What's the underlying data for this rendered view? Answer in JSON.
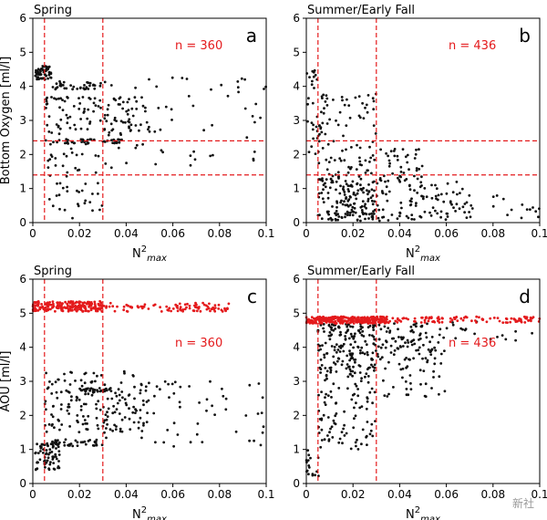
{
  "colors": {
    "black_points": "#111111",
    "red": "#e41a1c",
    "axis": "#000000",
    "watermark": "#9a9a9a"
  },
  "watermark_text": "新社",
  "chart_data": [
    {
      "type": "scatter",
      "panel_letter": "a",
      "title": "Spring",
      "xlabel": "N²max",
      "ylabel": "Bottom Oxygen [ml/l]",
      "xlim": [
        0,
        0.1
      ],
      "ylim": [
        0,
        6
      ],
      "xticks": [
        0,
        0.02,
        0.04,
        0.06,
        0.08,
        0.1
      ],
      "xtick_labels": [
        "0",
        "0.02",
        "0.04",
        "0.06",
        "0.08",
        "0.1"
      ],
      "yticks": [
        0,
        1,
        2,
        3,
        4,
        5,
        6
      ],
      "ytick_labels": [
        "0",
        "1",
        "2",
        "3",
        "4",
        "5",
        "6"
      ],
      "n_text": "n = 360",
      "vlines": [
        0.005,
        0.03
      ],
      "hlines": [
        1.4,
        2.4
      ],
      "series": [
        {
          "color": "black",
          "n": 360,
          "x_dist": [
            0.0,
            0.1
          ],
          "y_dist": [
            0.1,
            5.2
          ],
          "clusters": [
            {
              "x": [
                0.001,
                0.008
              ],
              "y": [
                4.2,
                4.6
              ],
              "w": 0.16
            },
            {
              "x": [
                0.008,
                0.03
              ],
              "y": [
                3.9,
                4.15
              ],
              "w": 0.1
            },
            {
              "x": [
                0.005,
                0.04
              ],
              "y": [
                2.3,
                2.45
              ],
              "w": 0.12
            },
            {
              "x": [
                0.005,
                0.05
              ],
              "y": [
                2.6,
                3.7
              ],
              "w": 0.3
            },
            {
              "x": [
                0.005,
                0.03
              ],
              "y": [
                0.1,
                2.2
              ],
              "w": 0.14
            },
            {
              "x": [
                0.03,
                0.1
              ],
              "y": [
                1.6,
                4.3
              ],
              "w": 0.18
            }
          ]
        }
      ]
    },
    {
      "type": "scatter",
      "panel_letter": "b",
      "title": "Summer/Early Fall",
      "xlabel": "N²max",
      "ylabel": "",
      "xlim": [
        0,
        0.1
      ],
      "ylim": [
        0,
        6
      ],
      "xticks": [
        0,
        0.02,
        0.04,
        0.06,
        0.08,
        0.1
      ],
      "xtick_labels": [
        "0",
        "0.02",
        "0.04",
        "0.06",
        "0.08",
        "0.1"
      ],
      "yticks": [
        0,
        1,
        2,
        3,
        4,
        5,
        6
      ],
      "ytick_labels": [
        "0",
        "1",
        "2",
        "3",
        "4",
        "5",
        "6"
      ],
      "n_text": "n = 436",
      "vlines": [
        0.005,
        0.03
      ],
      "hlines": [
        1.4,
        2.4
      ],
      "series": [
        {
          "color": "black",
          "n": 436,
          "x_dist": [
            0.0,
            0.1
          ],
          "y_dist": [
            0.0,
            4.5
          ],
          "clusters": [
            {
              "x": [
                0.0,
                0.005
              ],
              "y": [
                2.0,
                4.5
              ],
              "w": 0.06
            },
            {
              "x": [
                0.005,
                0.03
              ],
              "y": [
                0.05,
                1.3
              ],
              "w": 0.36
            },
            {
              "x": [
                0.005,
                0.03
              ],
              "y": [
                1.3,
                3.8
              ],
              "w": 0.22
            },
            {
              "x": [
                0.03,
                0.07
              ],
              "y": [
                0.05,
                1.2
              ],
              "w": 0.22
            },
            {
              "x": [
                0.07,
                0.1
              ],
              "y": [
                0.05,
                0.8
              ],
              "w": 0.04
            },
            {
              "x": [
                0.03,
                0.05
              ],
              "y": [
                1.2,
                2.2
              ],
              "w": 0.1
            }
          ]
        }
      ]
    },
    {
      "type": "scatter",
      "panel_letter": "c",
      "title": "Spring",
      "xlabel": "N²max",
      "ylabel": "AOU [ml/l]",
      "xlim": [
        0,
        0.1
      ],
      "ylim": [
        0,
        6
      ],
      "xticks": [
        0,
        0.02,
        0.04,
        0.06,
        0.08,
        0.1
      ],
      "xtick_labels": [
        "0",
        "0.02",
        "0.04",
        "0.06",
        "0.08",
        "0.1"
      ],
      "yticks": [
        0,
        1,
        2,
        3,
        4,
        5,
        6
      ],
      "ytick_labels": [
        "0",
        "1",
        "2",
        "3",
        "4",
        "5",
        "6"
      ],
      "n_text": "n = 360",
      "vlines": [
        0.005,
        0.03
      ],
      "hlines": [],
      "series": [
        {
          "color": "red",
          "n": 300,
          "x_dist": [
            0.0,
            0.084
          ],
          "y_dist": [
            5.0,
            5.4
          ],
          "clusters": [
            {
              "x": [
                0.0,
                0.03
              ],
              "y": [
                5.05,
                5.35
              ],
              "w": 0.7
            },
            {
              "x": [
                0.03,
                0.084
              ],
              "y": [
                5.05,
                5.3
              ],
              "w": 0.3
            }
          ]
        },
        {
          "color": "black",
          "n": 360,
          "x_dist": [
            0.0,
            0.1
          ],
          "y_dist": [
            0.3,
            3.5
          ],
          "clusters": [
            {
              "x": [
                0.0,
                0.012
              ],
              "y": [
                0.4,
                1.2
              ],
              "w": 0.2
            },
            {
              "x": [
                0.008,
                0.03
              ],
              "y": [
                1.1,
                1.3
              ],
              "w": 0.1
            },
            {
              "x": [
                0.005,
                0.05
              ],
              "y": [
                1.5,
                3.3
              ],
              "w": 0.45
            },
            {
              "x": [
                0.02,
                0.035
              ],
              "y": [
                2.7,
                2.8
              ],
              "w": 0.08
            },
            {
              "x": [
                0.03,
                0.1
              ],
              "y": [
                1.0,
                3.0
              ],
              "w": 0.17
            }
          ]
        }
      ]
    },
    {
      "type": "scatter",
      "panel_letter": "d",
      "title": "Summer/Early Fall",
      "xlabel": "N²max",
      "ylabel": "",
      "xlim": [
        0,
        0.1
      ],
      "ylim": [
        0,
        6
      ],
      "xticks": [
        0,
        0.02,
        0.04,
        0.06,
        0.08,
        0.1
      ],
      "xtick_labels": [
        "0",
        "0.02",
        "0.04",
        "0.06",
        "0.08",
        "0.1"
      ],
      "yticks": [
        0,
        1,
        2,
        3,
        4,
        5,
        6
      ],
      "ytick_labels": [
        "0",
        "1",
        "2",
        "3",
        "4",
        "5",
        "6"
      ],
      "n_text": "n = 436",
      "vlines": [
        0.005,
        0.03
      ],
      "hlines": [],
      "series": [
        {
          "color": "red",
          "n": 400,
          "x_dist": [
            0.0,
            0.1
          ],
          "y_dist": [
            4.65,
            4.95
          ],
          "clusters": [
            {
              "x": [
                0.0,
                0.035
              ],
              "y": [
                4.7,
                4.9
              ],
              "w": 0.75
            },
            {
              "x": [
                0.035,
                0.1
              ],
              "y": [
                4.72,
                4.9
              ],
              "w": 0.25
            }
          ]
        },
        {
          "color": "black",
          "n": 436,
          "x_dist": [
            0.0,
            0.1
          ],
          "y_dist": [
            0.2,
            4.8
          ],
          "clusters": [
            {
              "x": [
                0.0,
                0.006
              ],
              "y": [
                0.2,
                1.0
              ],
              "w": 0.04
            },
            {
              "x": [
                0.005,
                0.03
              ],
              "y": [
                3.0,
                4.7
              ],
              "w": 0.42
            },
            {
              "x": [
                0.005,
                0.03
              ],
              "y": [
                1.0,
                3.0
              ],
              "w": 0.2
            },
            {
              "x": [
                0.03,
                0.06
              ],
              "y": [
                3.6,
                4.7
              ],
              "w": 0.22
            },
            {
              "x": [
                0.03,
                0.06
              ],
              "y": [
                2.5,
                3.6
              ],
              "w": 0.08
            },
            {
              "x": [
                0.06,
                0.1
              ],
              "y": [
                4.2,
                4.8
              ],
              "w": 0.04
            }
          ]
        }
      ]
    }
  ]
}
